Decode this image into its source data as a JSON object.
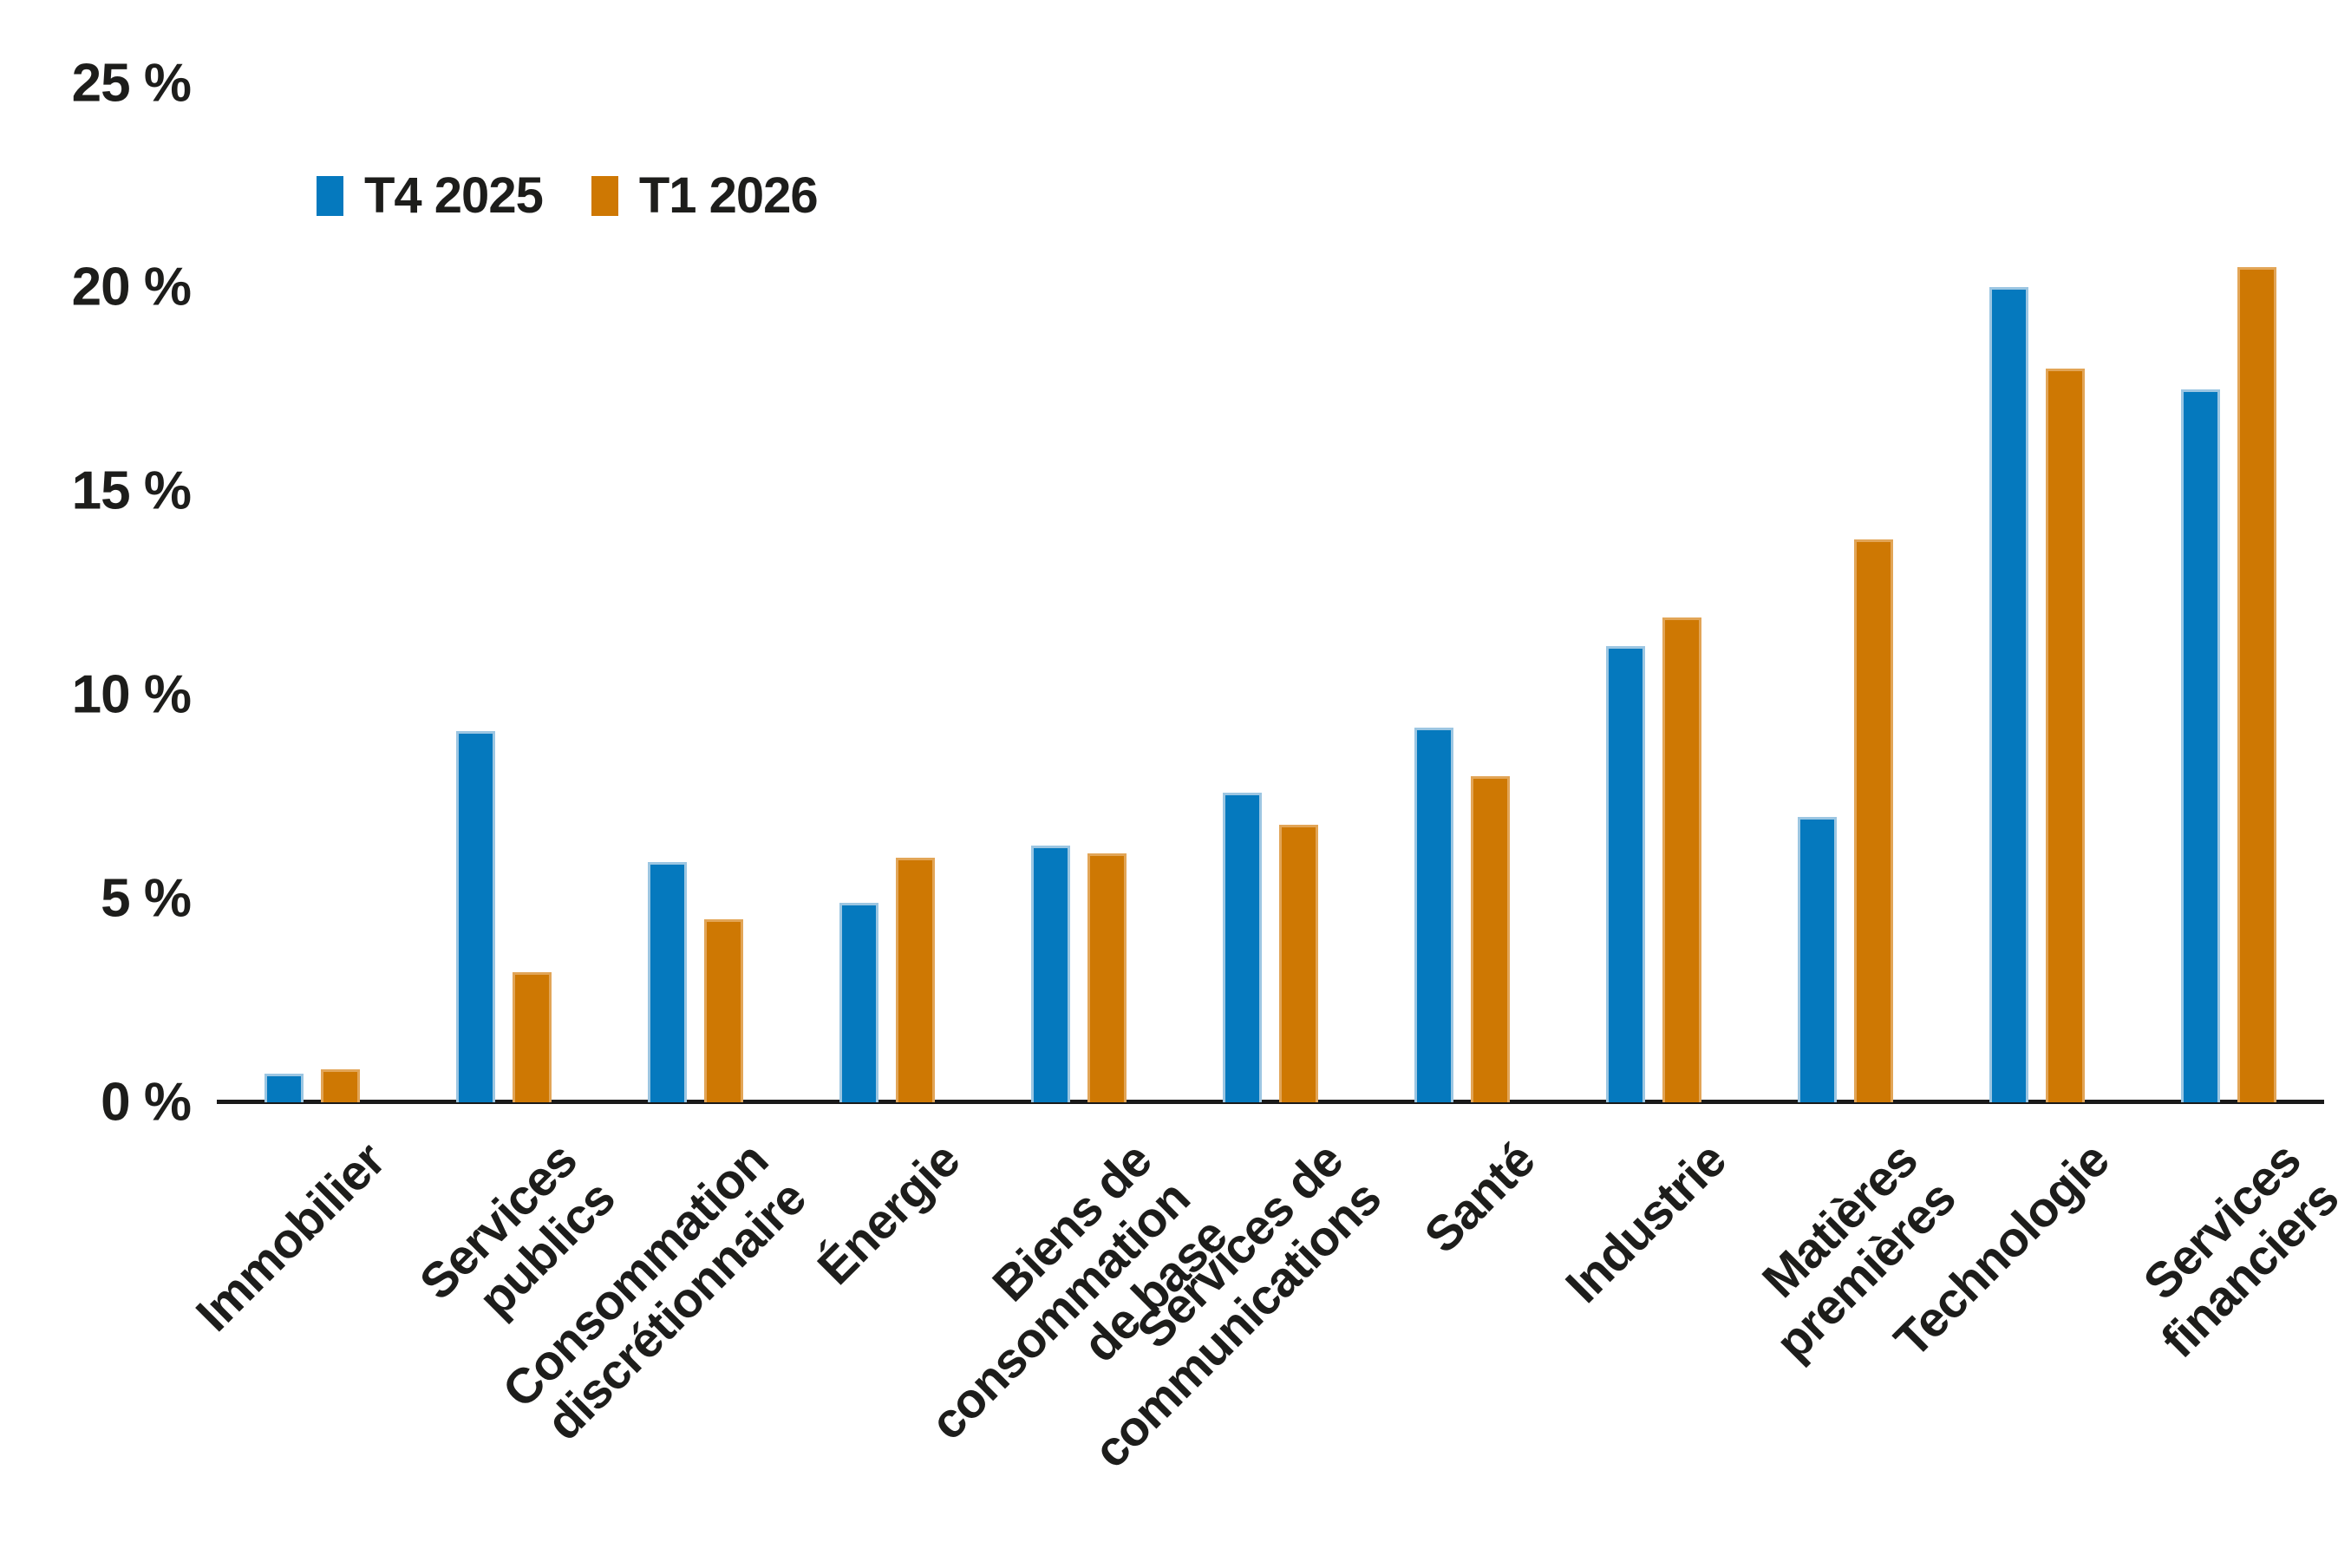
{
  "legend": {
    "items": [
      {
        "label": "T4 2025",
        "color": "#0579be"
      },
      {
        "label": "T1 2026",
        "color": "#ce7803"
      }
    ]
  },
  "y_axis": {
    "unit": "%",
    "ticks": [
      {
        "label": "25 %",
        "value": 25
      },
      {
        "label": "20 %",
        "value": 20
      },
      {
        "label": "15 %",
        "value": 15
      },
      {
        "label": "10 %",
        "value": 10
      },
      {
        "label": "5 %",
        "value": 5
      },
      {
        "label": "0 %",
        "value": 0
      }
    ]
  },
  "chart_data": {
    "type": "bar",
    "title": "",
    "xlabel": "",
    "ylabel": "",
    "ylim": [
      0,
      25
    ],
    "grid": false,
    "legend_position": "top-left",
    "categories": [
      "Immobilier",
      "Services publics",
      "Consommation\ndiscrétionnaire",
      "Énergie",
      "Biens de consommation\nde base",
      "Services de\ncommunications",
      "Santé",
      "Industrie",
      "Matières premières",
      "Technologie",
      "Services financiers"
    ],
    "series": [
      {
        "name": "T4 2025",
        "color": "#0579be",
        "values": [
          0.7,
          9.1,
          5.9,
          4.9,
          6.3,
          7.6,
          9.2,
          11.2,
          7.0,
          20.0,
          17.5
        ]
      },
      {
        "name": "T1 2026",
        "color": "#ce7803",
        "values": [
          0.8,
          3.2,
          4.5,
          6.0,
          6.1,
          6.8,
          8.0,
          11.9,
          13.8,
          18.0,
          20.5
        ]
      }
    ]
  }
}
